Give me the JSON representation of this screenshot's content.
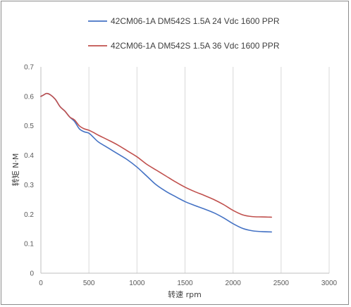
{
  "chart_data": {
    "type": "line",
    "title": "",
    "xlabel": "转速 rpm",
    "ylabel": "转矩 N·M",
    "xlim": [
      0,
      3000
    ],
    "ylim": [
      0,
      0.7
    ],
    "x_ticks": [
      "0",
      "500",
      "1000",
      "1500",
      "2000",
      "2500",
      "3000"
    ],
    "y_ticks": [
      "0",
      "0.1",
      "0.2",
      "0.3",
      "0.4",
      "0.5",
      "0.6",
      "0.7"
    ],
    "grid": "vertical",
    "legend_position": "top",
    "series": [
      {
        "name": "42CM06-1A DM542S 1.5A 24 Vdc  1600 PPR",
        "color": "#4472c4",
        "x": [
          0,
          30,
          60,
          100,
          150,
          200,
          250,
          300,
          350,
          400,
          450,
          500,
          550,
          600,
          700,
          800,
          900,
          1000,
          1100,
          1200,
          1300,
          1400,
          1500,
          1600,
          1700,
          1800,
          1900,
          2000,
          2100,
          2200,
          2300,
          2400
        ],
        "y": [
          0.6,
          0.605,
          0.61,
          0.605,
          0.59,
          0.565,
          0.55,
          0.53,
          0.515,
          0.49,
          0.48,
          0.475,
          0.46,
          0.445,
          0.425,
          0.405,
          0.385,
          0.36,
          0.33,
          0.3,
          0.278,
          0.26,
          0.243,
          0.23,
          0.218,
          0.205,
          0.188,
          0.168,
          0.152,
          0.144,
          0.141,
          0.14
        ]
      },
      {
        "name": "42CM06-1A DM542S 1.5A 36 Vdc  1600 PPR",
        "color": "#c0504d",
        "x": [
          0,
          30,
          60,
          100,
          150,
          200,
          250,
          300,
          350,
          400,
          450,
          500,
          550,
          600,
          700,
          800,
          900,
          1000,
          1100,
          1200,
          1300,
          1400,
          1500,
          1600,
          1700,
          1800,
          1900,
          2000,
          2100,
          2200,
          2300,
          2400
        ],
        "y": [
          0.6,
          0.605,
          0.61,
          0.605,
          0.59,
          0.565,
          0.55,
          0.53,
          0.52,
          0.5,
          0.49,
          0.485,
          0.477,
          0.468,
          0.452,
          0.435,
          0.415,
          0.395,
          0.37,
          0.35,
          0.33,
          0.31,
          0.292,
          0.277,
          0.264,
          0.25,
          0.233,
          0.213,
          0.198,
          0.192,
          0.191,
          0.19
        ]
      }
    ]
  }
}
